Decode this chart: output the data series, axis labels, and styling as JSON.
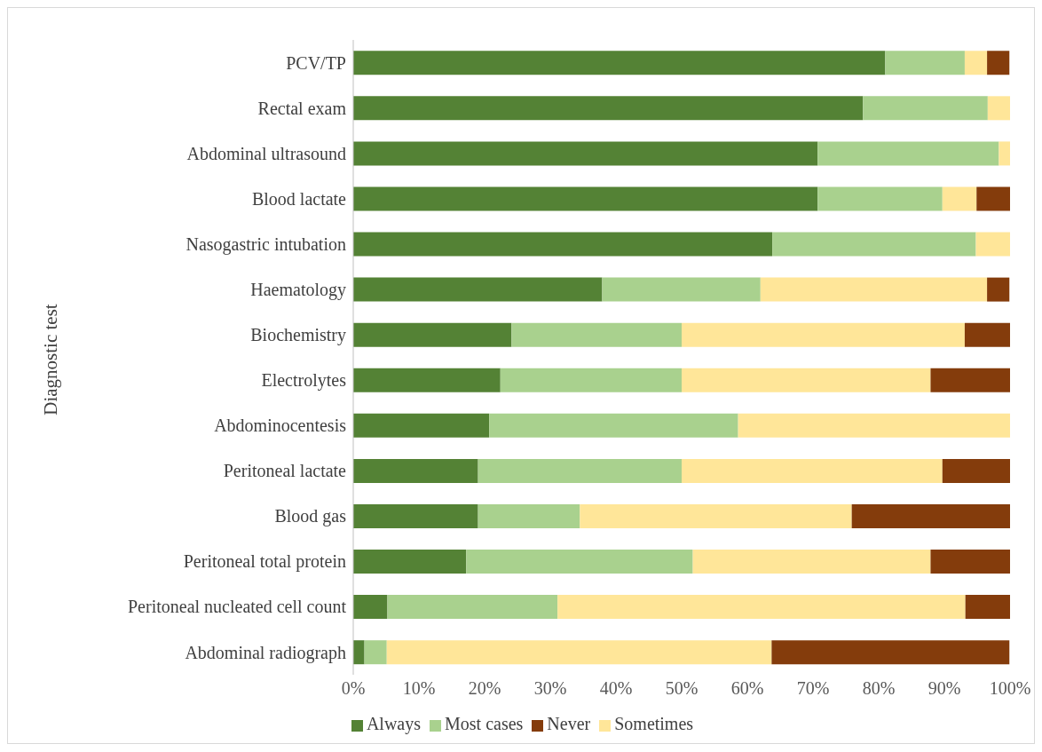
{
  "chart_data": {
    "type": "bar",
    "orientation": "horizontal",
    "stacked": true,
    "ylabel": "Diagnostic test",
    "categories": [
      "PCV/TP",
      "Rectal exam",
      "Abdominal ultrasound",
      "Blood lactate",
      "Nasogastric intubation",
      "Haematology",
      "Biochemistry",
      "Electrolytes",
      "Abdominocentesis",
      "Peritoneal lactate",
      "Blood gas",
      "Peritoneal total protein",
      "Peritoneal nucleated cell count",
      "Abdominal radiograph"
    ],
    "series": [
      {
        "name": "Always",
        "color": "#548235",
        "values": [
          81.0,
          77.6,
          70.7,
          70.7,
          63.8,
          37.9,
          24.1,
          22.4,
          20.7,
          19.0,
          19.0,
          17.2,
          5.2,
          1.7
        ]
      },
      {
        "name": "Most cases",
        "color": "#a9d18e",
        "values": [
          12.1,
          19.0,
          27.6,
          19.0,
          31.0,
          24.1,
          25.9,
          27.6,
          37.9,
          31.0,
          15.5,
          34.5,
          25.9,
          3.4
        ]
      },
      {
        "name": "Sometimes",
        "color": "#ffe699",
        "values": [
          3.4,
          3.4,
          1.7,
          5.2,
          5.2,
          34.5,
          43.1,
          37.9,
          41.4,
          39.7,
          41.4,
          36.2,
          62.1,
          58.6
        ]
      },
      {
        "name": "Never",
        "color": "#843c0c",
        "values": [
          3.4,
          0,
          0,
          5.2,
          0,
          3.4,
          6.9,
          12.1,
          0,
          10.3,
          24.1,
          12.1,
          6.9,
          36.2
        ]
      }
    ],
    "xlim": [
      0,
      100
    ],
    "xticks": [
      {
        "value": 0,
        "label": "0%"
      },
      {
        "value": 10,
        "label": "10%"
      },
      {
        "value": 20,
        "label": "20%"
      },
      {
        "value": 30,
        "label": "30%"
      },
      {
        "value": 40,
        "label": "40%"
      },
      {
        "value": 50,
        "label": "50%"
      },
      {
        "value": 60,
        "label": "60%"
      },
      {
        "value": 70,
        "label": "70%"
      },
      {
        "value": 80,
        "label": "80%"
      },
      {
        "value": 90,
        "label": "90%"
      },
      {
        "value": 100,
        "label": "100%"
      }
    ],
    "grid": false,
    "legend": "bottom"
  }
}
